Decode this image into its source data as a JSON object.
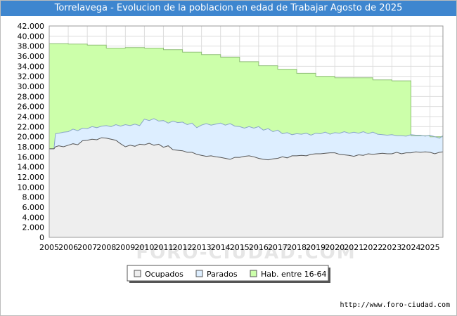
{
  "chart_data": {
    "type": "area",
    "title": "Torrelavega - Evolucion de la poblacion en edad de Trabajar Agosto de 2025",
    "xlabel": "",
    "ylabel": "",
    "ylim": [
      0,
      42000
    ],
    "yticks": [
      0,
      2000,
      4000,
      6000,
      8000,
      10000,
      12000,
      14000,
      16000,
      18000,
      20000,
      22000,
      24000,
      26000,
      28000,
      30000,
      32000,
      34000,
      36000,
      38000,
      40000,
      42000
    ],
    "ytick_labels": [
      "0",
      "2.000",
      "4.000",
      "6.000",
      "8.000",
      "10.000",
      "12.000",
      "14.000",
      "16.000",
      "18.000",
      "20.000",
      "22.000",
      "24.000",
      "26.000",
      "28.000",
      "30.000",
      "32.000",
      "34.000",
      "36.000",
      "38.000",
      "40.000",
      "42.000"
    ],
    "xlim": [
      2005,
      2025.68
    ],
    "xticks": [
      2005,
      2006,
      2007,
      2008,
      2009,
      2010,
      2011,
      2012,
      2013,
      2014,
      2015,
      2016,
      2017,
      2018,
      2019,
      2020,
      2021,
      2022,
      2023,
      2024,
      2025
    ],
    "xtick_labels": [
      "2005",
      "2006",
      "2007",
      "2008",
      "2009",
      "2010",
      "2011",
      "2012",
      "2013",
      "2014",
      "2015",
      "2016",
      "2017",
      "2018",
      "2019",
      "2020",
      "2021",
      "2022",
      "2023",
      "2024",
      "2025"
    ],
    "grid": true,
    "legend_position": "bottom-center",
    "series": [
      {
        "name": "Hab. entre 16-64",
        "color": "#ccffaa",
        "step": true,
        "x": [
          2005,
          2006,
          2007,
          2008,
          2009,
          2010,
          2011,
          2012,
          2013,
          2014,
          2015,
          2016,
          2017,
          2018,
          2019,
          2020,
          2021,
          2022,
          2023,
          2024,
          2025
        ],
        "values": [
          38500,
          38400,
          38200,
          37600,
          37700,
          37600,
          37300,
          36800,
          36300,
          35800,
          34900,
          34100,
          33400,
          32600,
          32000,
          31700,
          31700,
          31300,
          31100,
          20200,
          20000
        ]
      },
      {
        "name": "Parados",
        "color": "#ddeeff",
        "x": [
          2005,
          2005.25,
          2005.33,
          2005.5,
          2005.75,
          2006,
          2006.25,
          2006.5,
          2006.75,
          2007,
          2007.25,
          2007.5,
          2007.75,
          2008,
          2008.25,
          2008.5,
          2008.75,
          2009,
          2009.25,
          2009.5,
          2009.75,
          2010,
          2010.25,
          2010.5,
          2010.75,
          2011,
          2011.25,
          2011.5,
          2011.75,
          2012,
          2012.25,
          2012.5,
          2012.75,
          2013,
          2013.25,
          2013.5,
          2013.75,
          2014,
          2014.25,
          2014.5,
          2014.75,
          2015,
          2015.25,
          2015.5,
          2015.75,
          2016,
          2016.25,
          2016.5,
          2016.75,
          2017,
          2017.25,
          2017.5,
          2017.75,
          2018,
          2018.25,
          2018.5,
          2018.75,
          2019,
          2019.25,
          2019.5,
          2019.75,
          2020,
          2020.25,
          2020.5,
          2020.75,
          2021,
          2021.25,
          2021.5,
          2021.75,
          2022,
          2022.25,
          2022.5,
          2022.75,
          2023,
          2023.25,
          2023.5,
          2023.75,
          2024,
          2024.25,
          2024.5,
          2024.75,
          2025,
          2025.25,
          2025.5,
          2025.68
        ],
        "values": [
          17600,
          17600,
          20600,
          20700,
          20900,
          21000,
          21500,
          21200,
          21700,
          21600,
          22000,
          21800,
          22100,
          22200,
          22000,
          22400,
          22100,
          22400,
          22200,
          22500,
          22200,
          23500,
          23200,
          23600,
          23100,
          23200,
          22700,
          23100,
          22800,
          22900,
          22400,
          22700,
          21800,
          22300,
          22600,
          22300,
          22500,
          22700,
          22300,
          22600,
          22100,
          22000,
          21700,
          22000,
          21700,
          22000,
          21300,
          21600,
          21000,
          21300,
          20600,
          20800,
          20400,
          20600,
          20500,
          20700,
          20300,
          20700,
          20600,
          20900,
          20500,
          20800,
          20700,
          21000,
          20700,
          20900,
          20700,
          21000,
          20600,
          20900,
          20500,
          20400,
          20300,
          20400,
          20200,
          20200,
          20100,
          20400,
          20300,
          20300,
          20100,
          20300,
          20000,
          19700,
          20200
        ]
      },
      {
        "name": "Ocupados",
        "color": "#eeeeee",
        "x": [
          2005,
          2005.25,
          2005.33,
          2005.5,
          2005.75,
          2006,
          2006.25,
          2006.5,
          2006.75,
          2007,
          2007.25,
          2007.5,
          2007.75,
          2008,
          2008.25,
          2008.5,
          2008.75,
          2009,
          2009.25,
          2009.5,
          2009.75,
          2010,
          2010.25,
          2010.5,
          2010.75,
          2011,
          2011.25,
          2011.5,
          2011.75,
          2012,
          2012.25,
          2012.5,
          2012.75,
          2013,
          2013.25,
          2013.5,
          2013.75,
          2014,
          2014.25,
          2014.5,
          2014.75,
          2015,
          2015.25,
          2015.5,
          2015.75,
          2016,
          2016.25,
          2016.5,
          2016.75,
          2017,
          2017.25,
          2017.5,
          2017.75,
          2018,
          2018.25,
          2018.5,
          2018.75,
          2019,
          2019.25,
          2019.5,
          2019.75,
          2020,
          2020.25,
          2020.5,
          2020.75,
          2021,
          2021.25,
          2021.5,
          2021.75,
          2022,
          2022.25,
          2022.5,
          2022.75,
          2023,
          2023.25,
          2023.5,
          2023.75,
          2024,
          2024.25,
          2024.5,
          2024.75,
          2025,
          2025.25,
          2025.5,
          2025.68
        ],
        "values": [
          17600,
          17600,
          18000,
          18200,
          18000,
          18300,
          18600,
          18400,
          19200,
          19300,
          19500,
          19400,
          19800,
          19700,
          19500,
          19300,
          18600,
          18000,
          18300,
          18100,
          18500,
          18400,
          18700,
          18300,
          18500,
          17900,
          18200,
          17400,
          17300,
          17200,
          16900,
          16900,
          16500,
          16300,
          16100,
          16200,
          16000,
          15900,
          15700,
          15500,
          15900,
          15900,
          16100,
          16200,
          16000,
          15700,
          15500,
          15400,
          15600,
          15700,
          16000,
          15800,
          16200,
          16200,
          16300,
          16200,
          16500,
          16600,
          16600,
          16700,
          16800,
          16800,
          16500,
          16400,
          16300,
          16100,
          16400,
          16300,
          16600,
          16500,
          16600,
          16700,
          16600,
          16600,
          16900,
          16600,
          16800,
          16800,
          17000,
          16900,
          17000,
          16900,
          16600,
          16900,
          17000
        ]
      }
    ]
  },
  "legend": {
    "items": [
      {
        "label": "Ocupados",
        "color": "#eeeeee"
      },
      {
        "label": "Parados",
        "color": "#ddeeff"
      },
      {
        "label": "Hab. entre 16-64",
        "color": "#ccffaa"
      }
    ]
  },
  "watermark": {
    "text": "FORO-CIUDAD.COM"
  },
  "footer": {
    "url": "http://www.foro-ciudad.com"
  }
}
